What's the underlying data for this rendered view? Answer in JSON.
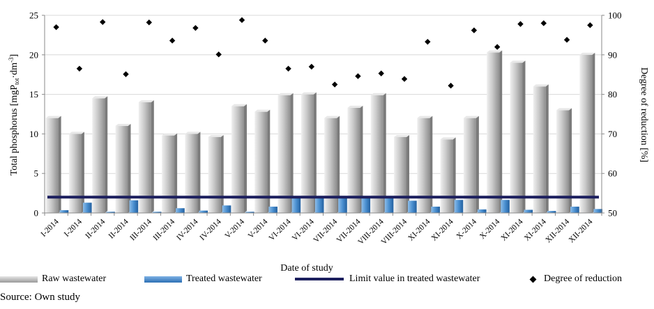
{
  "chart_data": {
    "type": "bar",
    "xlabel": "Date of study",
    "ylabel_left_main": "Total phosphorus [mgP",
    "ylabel_left_sub": "tot",
    "ylabel_left_end": "·dm",
    "ylabel_left_sup": "-3",
    "ylabel_left_close": "]",
    "ylabel_right": "Degree of reduction [%]",
    "ylim_left": [
      0,
      25
    ],
    "yticks_left": [
      0,
      5,
      10,
      15,
      20,
      25
    ],
    "ylim_right": [
      50,
      100
    ],
    "yticks_right": [
      50,
      60,
      70,
      80,
      90,
      100
    ],
    "categories": [
      "I-2014",
      "I-2014",
      "II-2014",
      "II-2014",
      "III-2014",
      "III-2014",
      "IV-2014",
      "IV-2014",
      "V-2014",
      "V-2014",
      "VI-2014",
      "VI-2014",
      "VII-2014",
      "VII-2014",
      "VIII-2014",
      "VIII-2014",
      "XI-2014",
      "XI-2014",
      "X-2014",
      "X-2014",
      "XI-2014",
      "XI-2014",
      "XII-2014",
      "XII-2014"
    ],
    "series": [
      {
        "name": "Raw wastewater",
        "kind": "bar",
        "axis": "left",
        "color": "#a8a8a8",
        "values": [
          12.0,
          10.0,
          14.5,
          11.0,
          14.0,
          9.8,
          10.0,
          9.6,
          13.5,
          12.8,
          14.9,
          15.0,
          12.0,
          13.3,
          14.9,
          9.6,
          12.0,
          9.3,
          12.0,
          20.3,
          19.0,
          16.0,
          13.0,
          20.0
        ]
      },
      {
        "name": "Treated wastewater",
        "kind": "bar",
        "axis": "left",
        "color": "#3a7ec3",
        "values": [
          0.35,
          1.3,
          0.15,
          1.6,
          0.15,
          0.6,
          0.3,
          0.95,
          0.15,
          0.8,
          2.0,
          2.0,
          2.0,
          2.0,
          2.0,
          1.55,
          0.8,
          1.65,
          0.45,
          1.65,
          0.4,
          0.25,
          0.8,
          0.5
        ]
      },
      {
        "name": "Limit value in treated wastewater",
        "kind": "line",
        "axis": "left",
        "color": "#1c1f5e",
        "values": [
          2.0,
          2.0,
          2.0,
          2.0,
          2.0,
          2.0,
          2.0,
          2.0,
          2.0,
          2.0,
          2.0,
          2.0,
          2.0,
          2.0,
          2.0,
          2.0,
          2.0,
          2.0,
          2.0,
          2.0,
          2.0,
          2.0,
          2.0,
          2.0
        ]
      },
      {
        "name": "Degree of reduction",
        "kind": "scatter",
        "axis": "right",
        "color": "#000000",
        "values": [
          97.0,
          86.5,
          98.3,
          85.1,
          98.2,
          93.6,
          96.8,
          90.1,
          98.8,
          93.6,
          86.5,
          87.0,
          82.5,
          84.6,
          85.3,
          83.9,
          93.3,
          82.2,
          96.2,
          92.0,
          97.8,
          98.0,
          93.8,
          97.5
        ]
      }
    ],
    "grid": "horizontal",
    "legend_position": "bottom"
  },
  "legend": {
    "raw": "Raw wastewater",
    "treated": "Treated wastewater",
    "limit": "Limit value in treated wastewater",
    "reduction": "Degree of reduction"
  },
  "source": "Source: Own study"
}
